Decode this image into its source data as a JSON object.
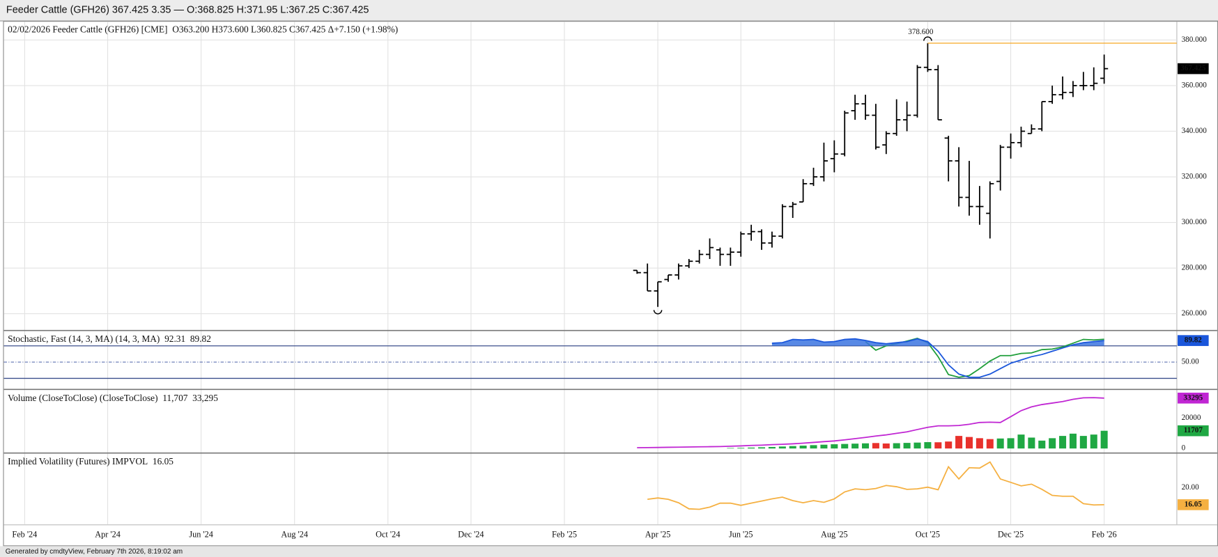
{
  "header": "Feeder Cattle (GFH26) 367.425 3.35 — O:368.825 H:371.95 L:367.25 C:367.425",
  "footer": "Generated by cmdtyView, February 7th 2026, 8:19:02 am",
  "chart_data": [
    {
      "type": "ohlc",
      "title": "02/02/2026 Feeder Cattle (GFH26) [CME]",
      "subtitle": "O363.200 H373.600 L360.825 C367.425 Δ+7.150 (+1.98%)",
      "color": "#000000",
      "grid": true,
      "xlim": [
        -2,
        111
      ],
      "xticks": [
        {
          "value": 0,
          "label": "Feb '24"
        },
        {
          "value": 8,
          "label": "Apr '24"
        },
        {
          "value": 17,
          "label": "Jun '24"
        },
        {
          "value": 26,
          "label": "Aug '24"
        },
        {
          "value": 35,
          "label": "Oct '24"
        },
        {
          "value": 43,
          "label": "Dec '24"
        },
        {
          "value": 52,
          "label": "Feb '25"
        },
        {
          "value": 61,
          "label": "Apr '25"
        },
        {
          "value": 69,
          "label": "Jun '25"
        },
        {
          "value": 78,
          "label": "Aug '25"
        },
        {
          "value": 87,
          "label": "Oct '25"
        },
        {
          "value": 95,
          "label": "Dec '25"
        },
        {
          "value": 104,
          "label": "Feb '26"
        }
      ],
      "ylim": [
        253,
        388
      ],
      "yticks": [
        {
          "value": 260,
          "label": "260.000"
        },
        {
          "value": 280,
          "label": "280.000"
        },
        {
          "value": 300,
          "label": "300.000"
        },
        {
          "value": 320,
          "label": "320.000"
        },
        {
          "value": 340,
          "label": "340.000"
        },
        {
          "value": 360,
          "label": "360.000"
        },
        {
          "value": 380,
          "label": "380.000"
        }
      ],
      "x": [
        59,
        60,
        61,
        62,
        63,
        64,
        65,
        66,
        67,
        68,
        69,
        70,
        71,
        72,
        73,
        74,
        75,
        76,
        77,
        78,
        79,
        80,
        81,
        82,
        83,
        84,
        85,
        86,
        87,
        88,
        89,
        90,
        91,
        92,
        93,
        94,
        95,
        96,
        97,
        98,
        99,
        100,
        101,
        102,
        103,
        104
      ],
      "open": [
        279,
        278,
        270,
        275,
        277,
        281,
        283,
        286,
        288,
        286,
        287,
        295,
        296,
        291,
        294,
        307,
        309,
        317,
        320,
        328,
        330,
        349,
        352,
        347,
        334,
        339,
        345,
        347,
        368,
        367,
        337,
        327,
        311,
        307,
        304,
        318,
        333,
        335,
        339,
        341,
        353,
        356,
        357,
        360,
        360,
        363.2
      ],
      "high": [
        279,
        282,
        274,
        277,
        282,
        284,
        288,
        293,
        289,
        289,
        296,
        299,
        297,
        296,
        308,
        309,
        319,
        324,
        335,
        336,
        349,
        356,
        356,
        352,
        340,
        354,
        353,
        369,
        378.6,
        369,
        338,
        333,
        327,
        316,
        318,
        334,
        339,
        342,
        343,
        353,
        360,
        364,
        362,
        366,
        368,
        373.6
      ],
      "low": [
        277.5,
        270,
        263,
        274,
        275,
        280,
        282,
        284,
        281,
        281,
        285,
        292,
        288,
        289,
        293,
        302,
        309,
        316,
        318,
        322,
        329,
        345,
        345,
        332,
        330,
        338,
        340,
        346,
        366,
        345,
        318,
        307,
        303,
        299,
        293,
        314,
        328,
        333,
        339,
        340,
        352,
        354,
        355,
        358,
        358,
        360.825
      ],
      "close": [
        278,
        270,
        274,
        277,
        281,
        283,
        286,
        289,
        286,
        287,
        295,
        296,
        291,
        294,
        307,
        308,
        317,
        320,
        327,
        330,
        348,
        352,
        347,
        333,
        339,
        345,
        347,
        368,
        367,
        345,
        327,
        311,
        307,
        307,
        317,
        333,
        335,
        340,
        341,
        353,
        356,
        357,
        360,
        360,
        361,
        367.425
      ],
      "last_label": "367.425",
      "annotations": [
        {
          "x": 87,
          "value": 378.6,
          "label": "378.600",
          "color": "#f5a623"
        }
      ]
    },
    {
      "type": "line",
      "title": "Stochastic, Fast (14, 3, MA)  (14, 3, MA)",
      "grid": true,
      "grid_dash": true,
      "ylim": [
        1,
        107
      ],
      "yticks": [
        {
          "value": 50,
          "label": "50.00"
        }
      ],
      "bands": [
        20,
        80
      ],
      "band_color": "#3b4f8c",
      "band_fill": "#3b74e0",
      "series": [
        {
          "color": "#1f9e3a",
          "value_label": "92.31",
          "x": [
            81,
            82,
            83,
            84,
            85,
            86,
            87,
            88,
            89,
            90,
            91,
            92,
            93,
            94,
            95,
            96,
            97,
            98,
            99,
            100,
            101,
            102,
            103,
            104
          ],
          "values": [
            88,
            72,
            80,
            84,
            89,
            94,
            86,
            60,
            27,
            22,
            25,
            38,
            52,
            62,
            62,
            66,
            67,
            73,
            74,
            78,
            85,
            92,
            91,
            92.31
          ]
        },
        {
          "color": "#1a56db",
          "value_label": "89.82",
          "box": true,
          "fill": true,
          "x": [
            72,
            73,
            74,
            75,
            76,
            77,
            78,
            79,
            80,
            81,
            82,
            83,
            84,
            85,
            86,
            87,
            88,
            89,
            90,
            91,
            92,
            93,
            94,
            95,
            96,
            97,
            98,
            99,
            100,
            101,
            102,
            103,
            104
          ],
          "values": [
            85,
            86,
            92,
            91,
            92,
            87,
            88,
            92,
            93,
            90,
            86,
            84,
            86,
            88,
            93,
            88,
            70,
            45,
            28,
            22,
            22,
            28,
            38,
            48,
            54,
            60,
            64,
            70,
            76,
            82,
            86,
            88,
            89.82
          ]
        }
      ]
    },
    {
      "type": "combo",
      "title": "Volume (CloseToClose)  (CloseToClose)",
      "grid": false,
      "ylim": [
        -2500,
        38500
      ],
      "yticks": [
        0,
        20000
      ],
      "series": [
        {
          "type": "bar",
          "color": "#1fa843",
          "value_label": "11,707",
          "box_label": "11707",
          "x": [
            68,
            69,
            70,
            71,
            72,
            73,
            74,
            75,
            76,
            77,
            78,
            79,
            80,
            81,
            82,
            83,
            84,
            85,
            86,
            87,
            88,
            89,
            90,
            91,
            92,
            93,
            94,
            95,
            96,
            97,
            98,
            99,
            100,
            101,
            102,
            103,
            104
          ],
          "values": [
            300,
            400,
            600,
            800,
            1000,
            1300,
            1600,
            1900,
            2200,
            2500,
            2800,
            3000,
            3200,
            3400,
            3600,
            3300,
            3500,
            3700,
            3900,
            4200,
            4100,
            4600,
            8300,
            7600,
            6800,
            6200,
            6600,
            6800,
            9200,
            7200,
            5200,
            6800,
            8300,
            9800,
            8300,
            9200,
            11707
          ],
          "colors": [
            "#1fa843",
            "#1fa843",
            "#1fa843",
            "#1fa843",
            "#1fa843",
            "#1fa843",
            "#1fa843",
            "#1fa843",
            "#1fa843",
            "#1fa843",
            "#1fa843",
            "#1fa843",
            "#1fa843",
            "#1fa843",
            "#e8312c",
            "#e8312c",
            "#1fa843",
            "#1fa843",
            "#1fa843",
            "#1fa843",
            "#e8312c",
            "#e8312c",
            "#e8312c",
            "#e8312c",
            "#e8312c",
            "#e8312c",
            "#1fa843",
            "#1fa843",
            "#1fa843",
            "#1fa843",
            "#1fa843",
            "#1fa843",
            "#1fa843",
            "#1fa843",
            "#1fa843",
            "#1fa843",
            "#1fa843"
          ]
        },
        {
          "type": "line",
          "color": "#c026d3",
          "value_label": "33,295",
          "box_label": "33295",
          "x": [
            59,
            60,
            61,
            62,
            63,
            64,
            65,
            66,
            67,
            68,
            69,
            70,
            71,
            72,
            73,
            74,
            75,
            76,
            77,
            78,
            79,
            80,
            81,
            82,
            83,
            84,
            85,
            86,
            87,
            88,
            89,
            90,
            91,
            92,
            93,
            94,
            95,
            96,
            97,
            98,
            99,
            100,
            101,
            102,
            103,
            104
          ],
          "values": [
            500,
            600,
            700,
            800,
            900,
            1000,
            1100,
            1200,
            1300,
            1500,
            1700,
            2000,
            2200,
            2500,
            2800,
            3100,
            3500,
            4000,
            4500,
            5000,
            5700,
            6500,
            7300,
            8200,
            9000,
            10000,
            11000,
            12500,
            14000,
            15000,
            15000,
            15200,
            16000,
            17200,
            17400,
            17200,
            21000,
            25000,
            27500,
            29000,
            30000,
            31000,
            32500,
            33500,
            33600,
            33295
          ]
        }
      ]
    },
    {
      "type": "line",
      "title": "Implied Volatility (Futures)  IMPVOL",
      "grid": false,
      "ylim": [
        11.5,
        27.8
      ],
      "yticks": [
        {
          "value": 20,
          "label": "20.00"
        }
      ],
      "series": [
        {
          "color": "#f5b041",
          "value_label": "16.05",
          "box": true,
          "x": [
            60,
            61,
            62,
            63,
            64,
            65,
            66,
            67,
            68,
            69,
            70,
            71,
            72,
            73,
            74,
            75,
            76,
            77,
            78,
            79,
            80,
            81,
            82,
            83,
            84,
            85,
            86,
            87,
            88,
            89,
            90,
            91,
            92,
            93,
            94,
            95,
            96,
            97,
            98,
            99,
            100,
            101,
            102,
            103,
            104
          ],
          "values": [
            17.3,
            17.6,
            17.3,
            16.5,
            15.1,
            15.0,
            15.5,
            16.4,
            16.4,
            15.9,
            16.4,
            16.9,
            17.4,
            17.8,
            17.0,
            16.5,
            17.0,
            16.6,
            17.4,
            19.0,
            19.7,
            19.5,
            19.8,
            20.5,
            20.2,
            19.6,
            19.7,
            20.1,
            19.5,
            24.8,
            22.0,
            24.6,
            24.5,
            25.9,
            22.0,
            21.2,
            20.4,
            20.8,
            19.6,
            18.2,
            18.0,
            18.0,
            16.3,
            16.0,
            16.05
          ]
        }
      ]
    }
  ]
}
